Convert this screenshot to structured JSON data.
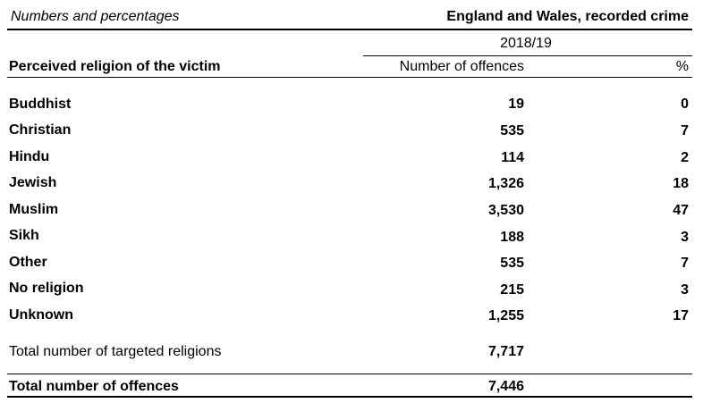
{
  "header": {
    "left": "Numbers and percentages",
    "right": "England and Wales, recorded crime"
  },
  "table": {
    "year": "2018/19",
    "col_label": "Perceived religion of the victim",
    "col_num": "Number of offences",
    "col_pct": "%",
    "rows": [
      {
        "label": "Buddhist",
        "num": "19",
        "pct": "0"
      },
      {
        "label": "Christian",
        "num": "535",
        "pct": "7"
      },
      {
        "label": "Hindu",
        "num": "114",
        "pct": "2"
      },
      {
        "label": "Jewish",
        "num": "1,326",
        "pct": "18"
      },
      {
        "label": "Muslim",
        "num": "3,530",
        "pct": "47"
      },
      {
        "label": "Sikh",
        "num": "188",
        "pct": "3"
      },
      {
        "label": "Other",
        "num": "535",
        "pct": "7"
      },
      {
        "label": "No religion",
        "num": "215",
        "pct": "3"
      },
      {
        "label": "Unknown",
        "num": "1,255",
        "pct": "17"
      }
    ],
    "total_targeted": {
      "label": "Total number of targeted religions",
      "num": "7,717"
    },
    "total_offences": {
      "label": "Total number of offences",
      "num": "7,446"
    }
  }
}
